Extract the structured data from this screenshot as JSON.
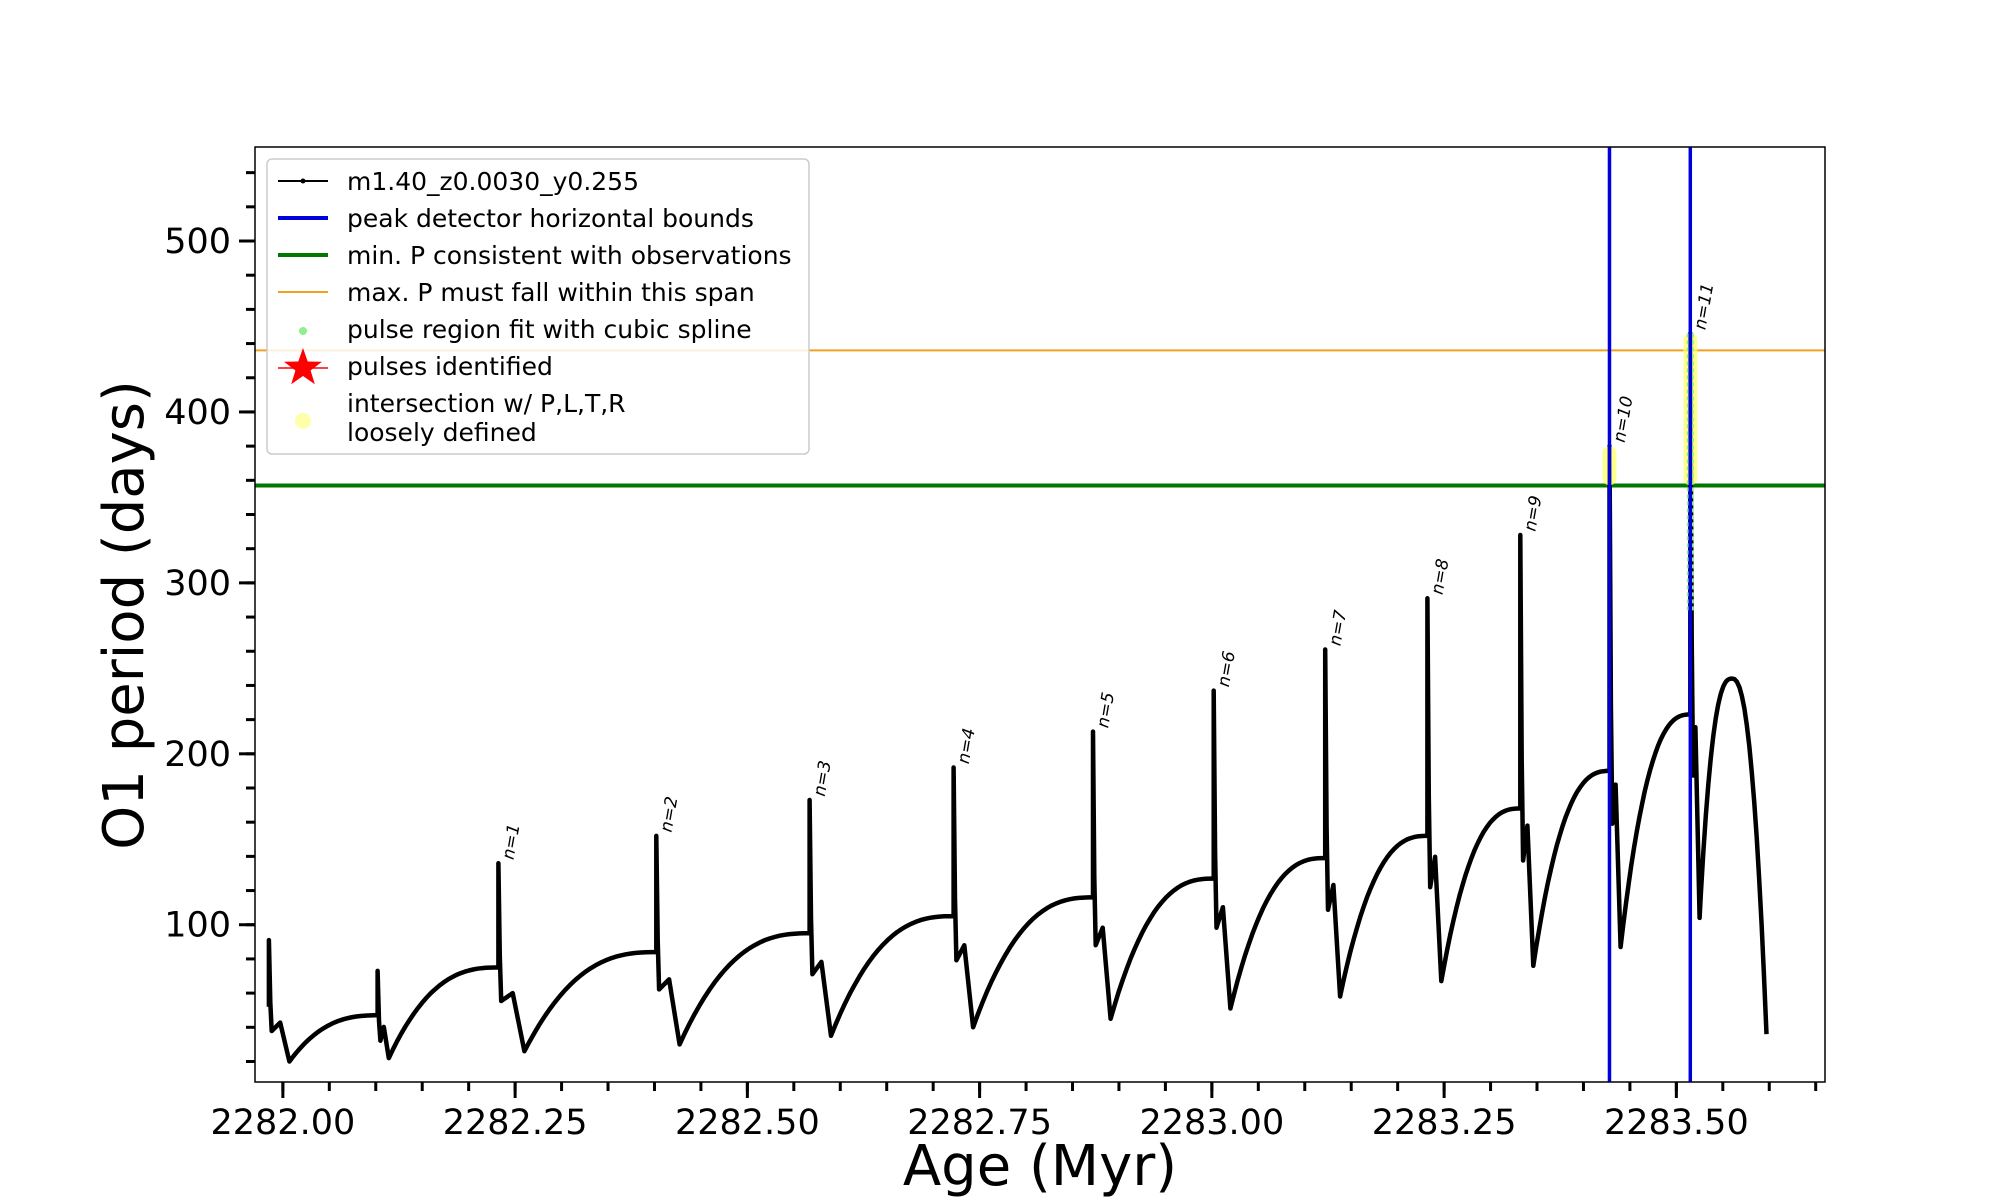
{
  "chart_data": {
    "type": "line",
    "xlabel": "Age (Myr)",
    "ylabel": "O1 period (days)",
    "xlim": [
      2281.97,
      2283.66
    ],
    "ylim": [
      8,
      555
    ],
    "x_ticks": [
      2282.0,
      2282.25,
      2282.5,
      2282.75,
      2283.0,
      2283.25,
      2283.5
    ],
    "x_tick_labels": [
      "2282.00",
      "2282.25",
      "2282.50",
      "2282.75",
      "2283.00",
      "2283.25",
      "2283.50"
    ],
    "x_minor_step": 0.05,
    "y_ticks": [
      100,
      200,
      300,
      400,
      500
    ],
    "y_tick_labels": [
      "100",
      "200",
      "300",
      "400",
      "500"
    ],
    "y_minor_step": 20,
    "grid": false,
    "legend_position": "top-left",
    "legend": [
      {
        "label": "m1.40_z0.0030_y0.255",
        "kind": "line-marker",
        "color": "#000000"
      },
      {
        "label": "peak detector horizontal bounds",
        "kind": "line",
        "color": "#0000dd"
      },
      {
        "label": "min. P consistent with observations",
        "kind": "line",
        "color": "#007700"
      },
      {
        "label": "max. P must fall within this span",
        "kind": "thin-line",
        "color": "#f0a020"
      },
      {
        "label": "pulse region fit with cubic spline",
        "kind": "dot",
        "color": "#90ee90"
      },
      {
        "label": "pulses identified",
        "kind": "star",
        "color": "#ff0000"
      },
      {
        "label": "intersection w/ P,L,T,R",
        "label2": "loosely defined",
        "kind": "big-dot",
        "color": "#ffffaa"
      }
    ],
    "vlines": [
      2283.428,
      2283.515
    ],
    "min_p_line": 357,
    "max_p_line": 436,
    "series_color": "#000000",
    "pulses": [
      {
        "n": "",
        "x": 2281.985,
        "peak": 91,
        "base_before": 52,
        "min": 20,
        "min_dx": 0.022
      },
      {
        "n": "",
        "x": 2282.102,
        "peak": 73,
        "base_before": 47,
        "min": 22,
        "min_dx": 0.012
      },
      {
        "n": "n=1",
        "x": 2282.232,
        "peak": 136,
        "base_before": 75,
        "min": 26,
        "min_dx": 0.028
      },
      {
        "n": "n=2",
        "x": 2282.402,
        "peak": 152,
        "base_before": 84,
        "min": 30,
        "min_dx": 0.025
      },
      {
        "n": "n=3",
        "x": 2282.567,
        "peak": 173,
        "base_before": 95,
        "min": 35,
        "min_dx": 0.023
      },
      {
        "n": "n=4",
        "x": 2282.722,
        "peak": 192,
        "base_before": 105,
        "min": 40,
        "min_dx": 0.021
      },
      {
        "n": "n=5",
        "x": 2282.872,
        "peak": 213,
        "base_before": 116,
        "min": 45,
        "min_dx": 0.019
      },
      {
        "n": "n=6",
        "x": 2283.002,
        "peak": 237,
        "base_before": 127,
        "min": 51,
        "min_dx": 0.018
      },
      {
        "n": "n=7",
        "x": 2283.122,
        "peak": 261,
        "base_before": 139,
        "min": 58,
        "min_dx": 0.016
      },
      {
        "n": "n=8",
        "x": 2283.232,
        "peak": 291,
        "base_before": 152,
        "min": 67,
        "min_dx": 0.015
      },
      {
        "n": "n=9",
        "x": 2283.332,
        "peak": 328,
        "base_before": 168,
        "min": 76,
        "min_dx": 0.014
      },
      {
        "n": "n=10",
        "x": 2283.428,
        "peak": 380,
        "base_before": 190,
        "min": 87,
        "min_dx": 0.012
      },
      {
        "n": "n=11",
        "x": 2283.515,
        "peak": 446,
        "base_before": 223,
        "min": 104,
        "min_dx": 0.01
      }
    ],
    "final_rise": {
      "peak_x": 2283.56,
      "peak": 244,
      "end_x": 2283.597,
      "end": 36
    },
    "spline_region": {
      "x": 2283.515,
      "y_from": 283,
      "y_to": 446
    },
    "intersection_regions": [
      {
        "x": 2283.428,
        "y_from": 357,
        "y_to": 380
      },
      {
        "x": 2283.515,
        "y_from": 357,
        "y_to": 446
      }
    ]
  }
}
